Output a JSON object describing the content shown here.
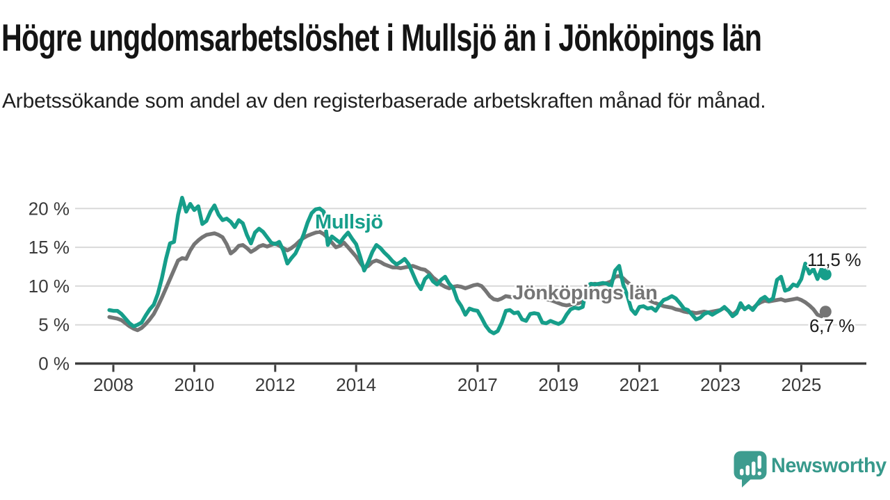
{
  "header": {
    "title": "Högre ungdomsarbetslöshet i Mullsjö än i Jönköpings län",
    "subtitle": "Arbetssökande som andel av den registerbaserade arbetskraften månad för månad."
  },
  "chart_data": {
    "type": "line",
    "title": "Högre ungdomsarbetslöshet i Mullsjö än i Jönköpings län",
    "xlabel": "",
    "ylabel": "",
    "x_start": 2007.9,
    "x_step": 0.1,
    "xlim": [
      2007.05,
      2026.6
    ],
    "ylim": [
      0,
      22
    ],
    "grid": true,
    "x_ticks": [
      2008,
      2010,
      2012,
      2014,
      2017,
      2019,
      2021,
      2023,
      2025
    ],
    "x_tick_labels": [
      "2008",
      "2010",
      "2012",
      "2014",
      "2017",
      "2019",
      "2021",
      "2023",
      "2025"
    ],
    "y_ticks": [
      0,
      5,
      10,
      15,
      20
    ],
    "y_tick_labels": [
      "0 %",
      "5 %",
      "10 %",
      "15 %",
      "20 %"
    ],
    "legend_position": "inline-labels",
    "series": [
      {
        "name": "Jönköpings län",
        "color": "#757575",
        "end_label": "6,7 %",
        "end_dot": true,
        "values": [
          6.0,
          5.9,
          5.8,
          5.6,
          5.2,
          4.8,
          4.5,
          4.3,
          4.6,
          5.1,
          5.7,
          6.4,
          7.4,
          8.5,
          9.7,
          10.9,
          12.1,
          13.3,
          13.6,
          13.5,
          14.6,
          15.4,
          15.9,
          16.3,
          16.6,
          16.7,
          16.8,
          16.6,
          16.3,
          15.4,
          14.2,
          14.6,
          15.2,
          15.3,
          14.9,
          14.4,
          14.7,
          15.1,
          15.3,
          15.1,
          15.3,
          15.5,
          15.2,
          14.9,
          14.6,
          14.9,
          15.3,
          15.8,
          16.2,
          16.5,
          16.7,
          16.9,
          17.0,
          16.7,
          16.2,
          15.6,
          15.0,
          15.2,
          15.6,
          15.0,
          14.4,
          13.8,
          13.0,
          12.3,
          12.6,
          13.1,
          13.3,
          13.1,
          12.8,
          12.6,
          12.4,
          12.4,
          12.3,
          12.4,
          12.5,
          12.6,
          12.4,
          12.2,
          12.1,
          11.7,
          11.1,
          10.7,
          10.2,
          9.9,
          9.7,
          9.9,
          10.0,
          9.9,
          9.7,
          9.9,
          10.1,
          10.2,
          10.0,
          9.4,
          8.7,
          8.3,
          8.2,
          8.4,
          8.7,
          8.6,
          8.5,
          8.6,
          8.7,
          8.5,
          8.4,
          8.5,
          8.6,
          8.5,
          8.3,
          8.2,
          8.0,
          7.8,
          7.6,
          7.5,
          7.6,
          7.7,
          7.8,
          8.0,
          10.0,
          10.2,
          10.3,
          10.2,
          10.3,
          10.4,
          10.6,
          11.2,
          11.3,
          11.0,
          10.5,
          10.1,
          9.8,
          9.3,
          8.8,
          8.3,
          8.0,
          7.8,
          7.6,
          7.4,
          7.3,
          7.2,
          7.0,
          6.9,
          6.7,
          6.6,
          6.6,
          6.5,
          6.6,
          6.7,
          6.6,
          6.7,
          6.8,
          6.9,
          7.2,
          6.8,
          6.3,
          6.7,
          7.4,
          7.1,
          7.3,
          7.1,
          7.6,
          7.9,
          8.1,
          8.0,
          8.1,
          8.2,
          8.3,
          8.1,
          8.2,
          8.3,
          8.4,
          8.2,
          7.9,
          7.5,
          7.0,
          6.3,
          6.1,
          6.7
        ]
      },
      {
        "name": "Mullsjö",
        "color": "#169e8a",
        "end_label": "11,5 %",
        "end_dot": true,
        "values": [
          6.9,
          6.8,
          6.8,
          6.4,
          5.8,
          5.2,
          4.8,
          5.0,
          5.3,
          6.2,
          7.0,
          7.6,
          9.0,
          11.0,
          13.5,
          15.5,
          15.7,
          19.2,
          21.4,
          19.6,
          20.6,
          19.8,
          20.3,
          18.0,
          18.4,
          19.6,
          20.4,
          19.2,
          18.5,
          18.7,
          18.3,
          17.6,
          18.5,
          18.1,
          16.6,
          15.5,
          16.9,
          17.4,
          17.0,
          16.3,
          15.6,
          15.4,
          15.7,
          14.6,
          12.9,
          13.6,
          14.2,
          15.3,
          16.6,
          18.2,
          19.4,
          19.9,
          20.0,
          19.6,
          15.3,
          16.4,
          16.0,
          15.6,
          16.3,
          16.9,
          16.1,
          15.4,
          13.8,
          12.0,
          13.1,
          14.4,
          15.3,
          14.9,
          14.3,
          13.8,
          13.2,
          12.8,
          13.1,
          13.5,
          12.8,
          11.6,
          10.4,
          9.6,
          10.9,
          11.4,
          10.6,
          10.2,
          10.8,
          11.2,
          10.3,
          9.7,
          8.2,
          7.4,
          6.3,
          7.1,
          6.9,
          6.8,
          5.9,
          4.9,
          4.2,
          3.9,
          4.2,
          5.3,
          6.8,
          6.9,
          6.5,
          6.6,
          5.7,
          5.5,
          6.4,
          6.5,
          6.4,
          5.3,
          5.2,
          5.5,
          5.3,
          5.1,
          5.4,
          6.3,
          7.0,
          7.2,
          7.1,
          7.3,
          10.0,
          10.3,
          10.2,
          10.3,
          10.4,
          10.3,
          10.0,
          12.0,
          12.6,
          10.2,
          8.8,
          7.0,
          6.4,
          7.3,
          7.4,
          7.1,
          7.2,
          6.8,
          7.6,
          8.2,
          8.4,
          8.7,
          8.4,
          7.8,
          7.1,
          6.9,
          6.3,
          5.7,
          5.9,
          6.4,
          6.6,
          6.3,
          6.6,
          6.9,
          7.3,
          6.8,
          6.1,
          6.5,
          7.8,
          7.0,
          7.4,
          6.9,
          7.6,
          8.3,
          8.6,
          8.1,
          8.4,
          10.8,
          11.2,
          9.4,
          9.6,
          10.2,
          10.0,
          10.9,
          12.9,
          11.6,
          12.2,
          10.9,
          12.2,
          11.5
        ]
      }
    ]
  },
  "annotations": {
    "mullsjo_label": "Mullsjö",
    "jonkoping_label": "Jönköpings län",
    "mullsjo_end_value": "11,5 %",
    "jonkoping_end_value": "6,7 %"
  },
  "branding": {
    "name": "Newsworthy",
    "color": "#37998b",
    "icon": "speech-bubble-bar-chart"
  },
  "colors": {
    "mullsjo_line": "#169e8a",
    "jonkoping_line": "#757575",
    "grid": "#d9d9d9",
    "axis": "#3d3d3d",
    "tick_text": "#3a3a3a",
    "title_text": "#141414",
    "background": "#ffffff"
  }
}
